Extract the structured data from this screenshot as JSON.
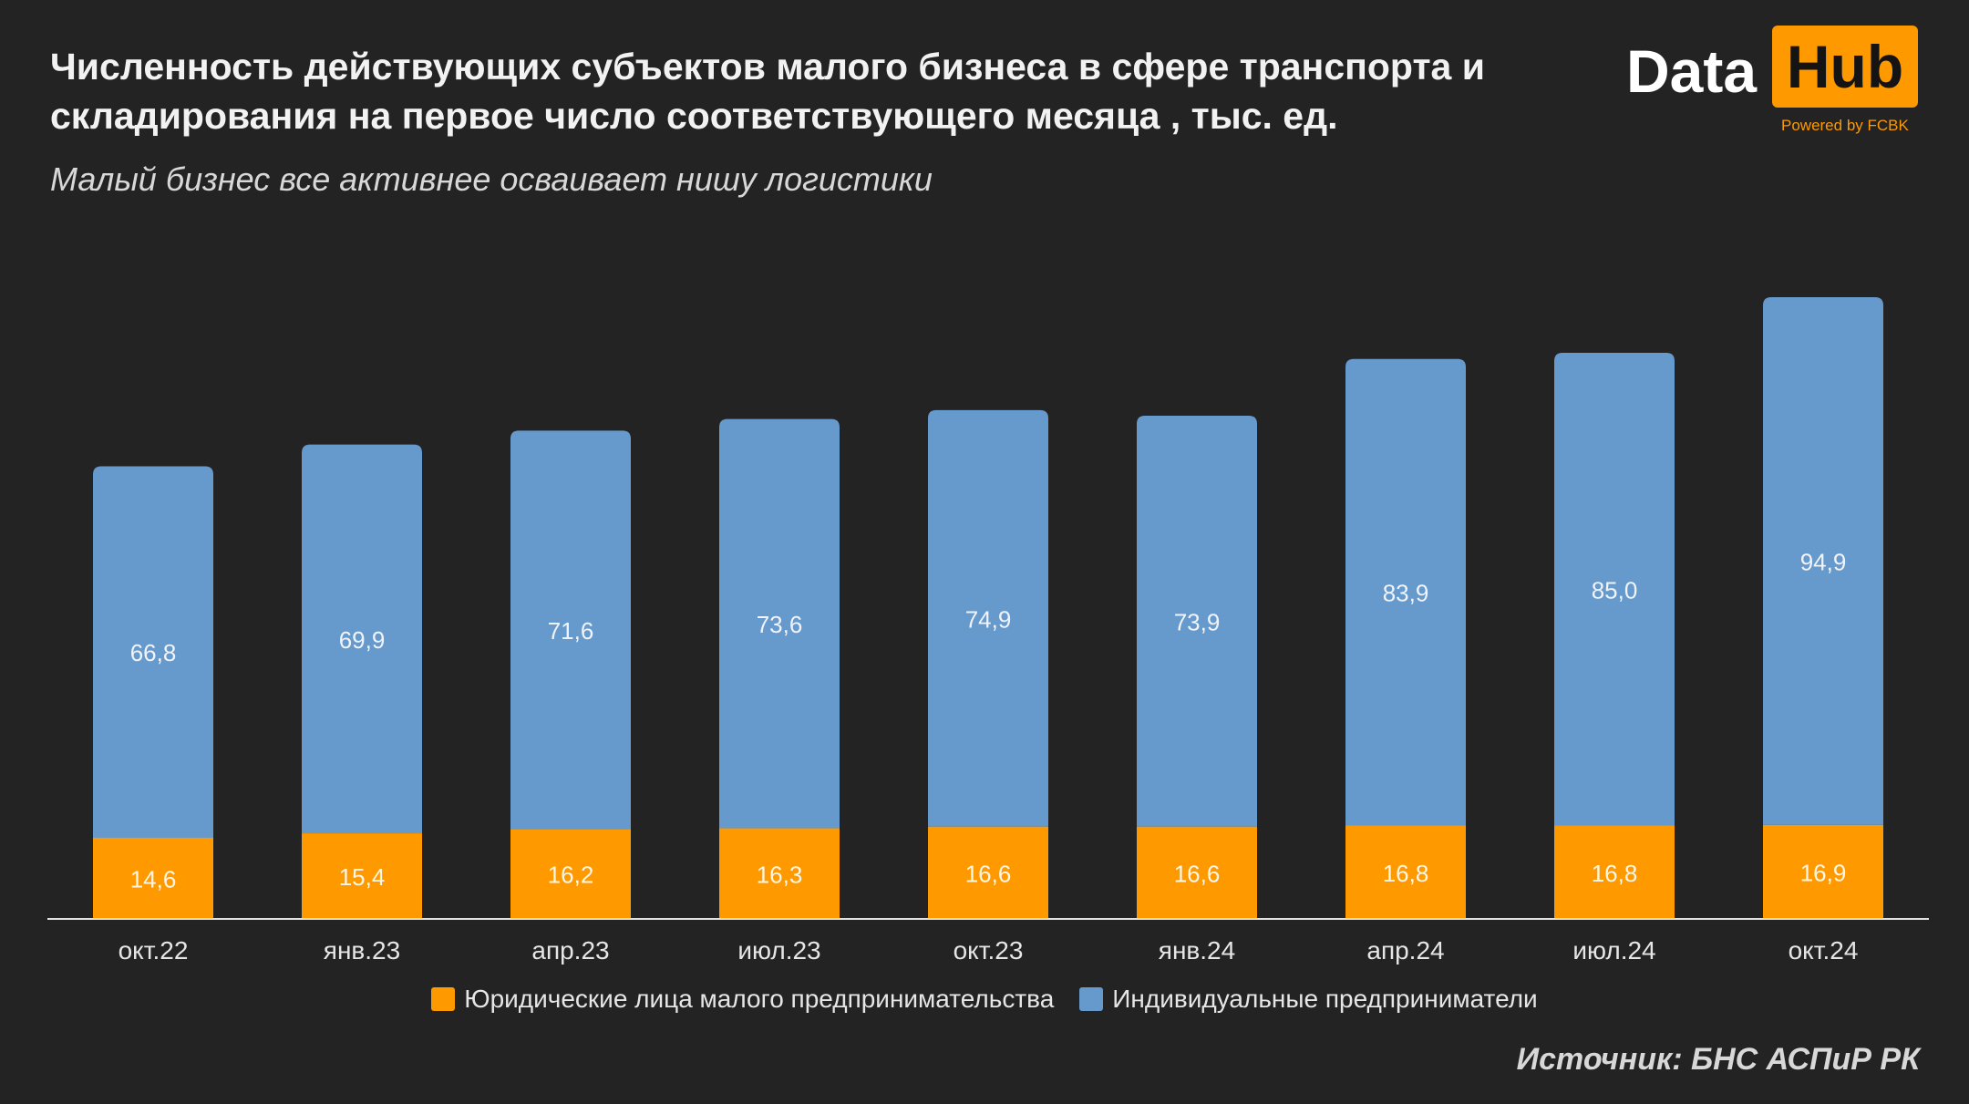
{
  "header": {
    "title": "Численность действующих субъектов малого бизнеса в сфере транспорта и складирования на первое число соответствующего месяца , тыс. ед.",
    "subtitle": "Малый бизнес все активнее осваивает нишу логистики"
  },
  "logo": {
    "data_text": "Data",
    "hub_text": "Hub",
    "powered_text": "Powered by FCBK",
    "accent_color": "#ff9900"
  },
  "chart_data": {
    "type": "bar",
    "stacked": true,
    "categories": [
      "окт.22",
      "янв.23",
      "апр.23",
      "июл.23",
      "окт.23",
      "янв.24",
      "апр.24",
      "июл.24",
      "окт.24"
    ],
    "series": [
      {
        "name": "Юридические лица малого предпринимательства",
        "color": "#ff9900",
        "values": [
          14.6,
          15.4,
          16.2,
          16.3,
          16.6,
          16.6,
          16.8,
          16.8,
          16.9
        ],
        "labels": [
          "14,6",
          "15,4",
          "16,2",
          "16,3",
          "16,6",
          "16,6",
          "16,8",
          "16,8",
          "16,9"
        ]
      },
      {
        "name": "Индивидуальные предприниматели",
        "color": "#6699cc",
        "values": [
          66.8,
          69.9,
          71.6,
          73.6,
          74.9,
          73.9,
          83.9,
          85.0,
          94.9
        ],
        "labels": [
          "66,8",
          "69,9",
          "71,6",
          "73,6",
          "74,9",
          "73,9",
          "83,9",
          "85,0",
          "94,9"
        ]
      }
    ],
    "ylim": [
      0,
      115
    ],
    "grid": false,
    "legend_position": "bottom"
  },
  "source": "Источник: БНС АСПиР РК"
}
